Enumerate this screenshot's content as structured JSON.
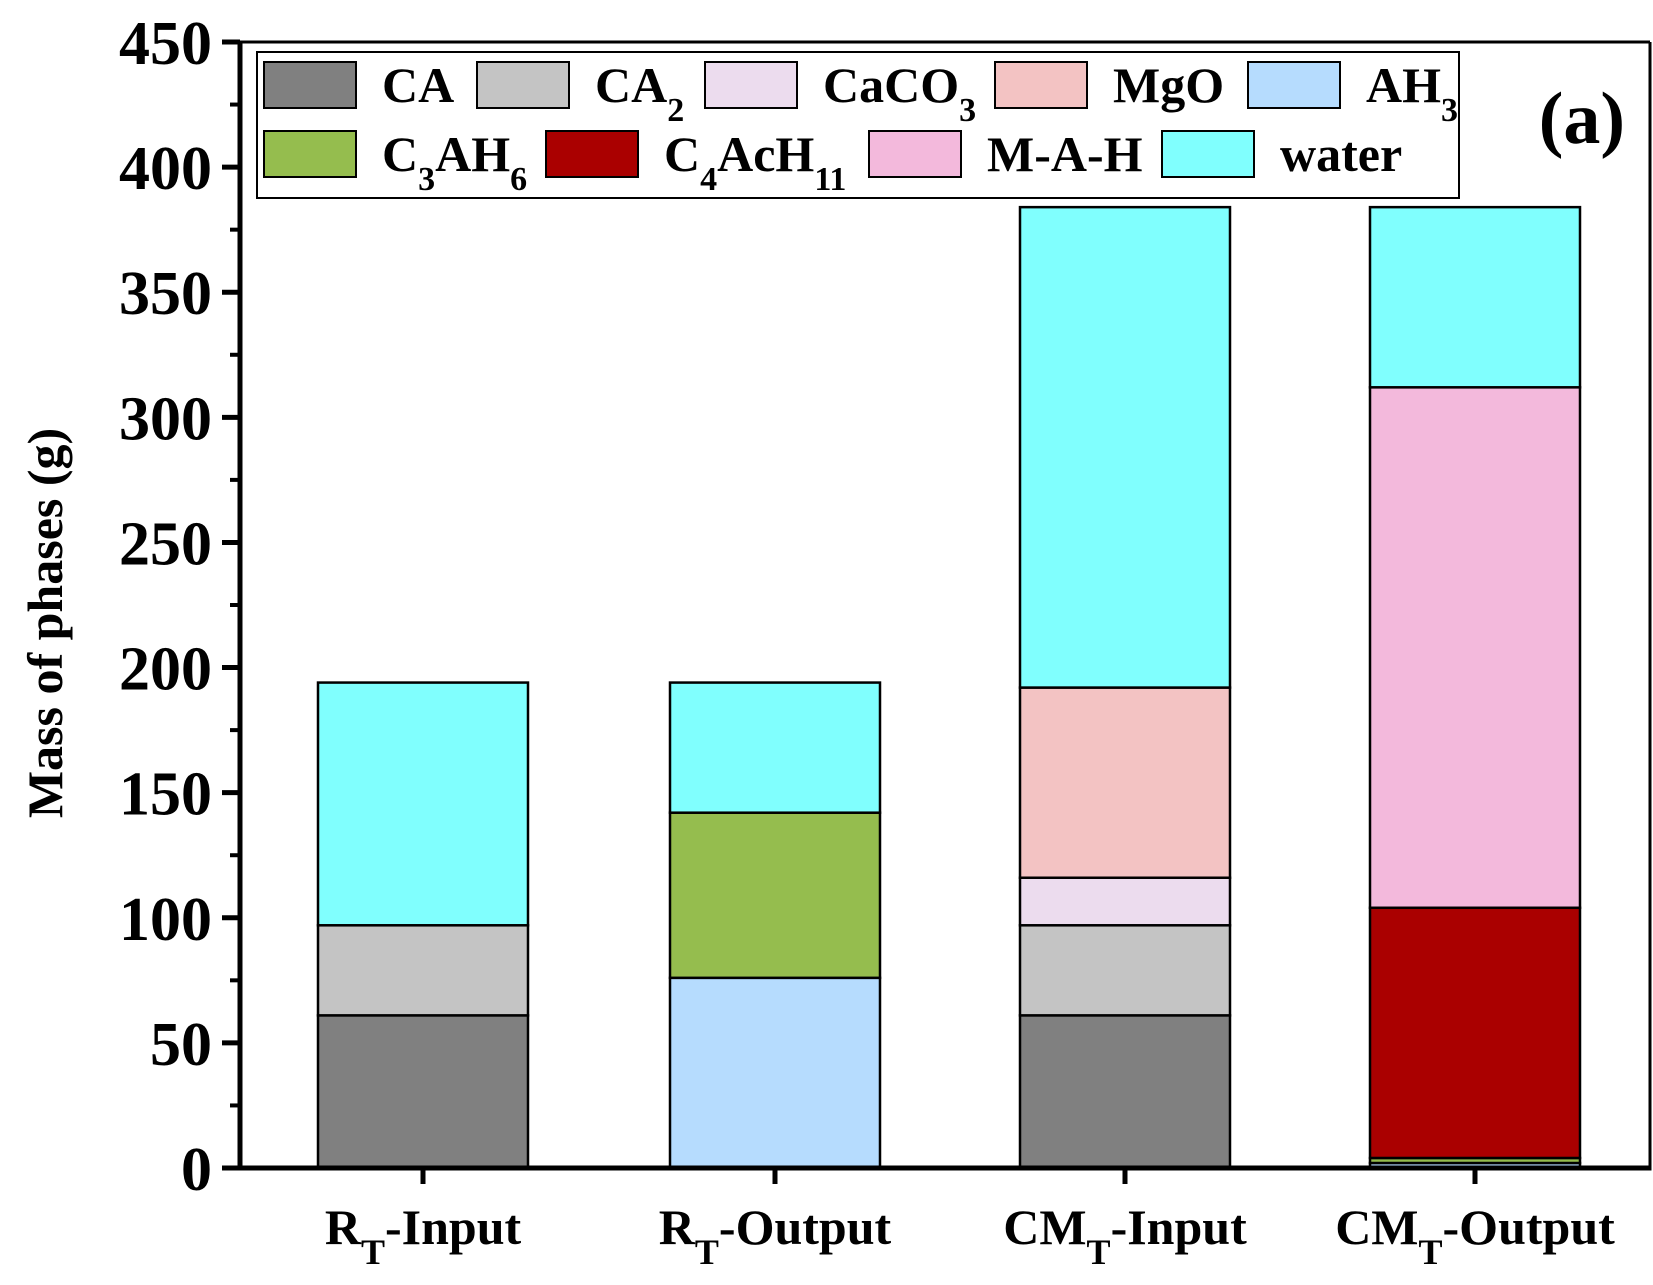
{
  "chart_data": {
    "type": "bar",
    "stacked": true,
    "panel_label": "(a)",
    "ylabel": "Mass of phases (g)",
    "xlabel": "",
    "ylim": [
      0,
      450
    ],
    "yticks": [
      "0",
      "50",
      "100",
      "150",
      "200",
      "250",
      "300",
      "350",
      "400",
      "450"
    ],
    "categories": [
      {
        "main": "R",
        "sub": "T",
        "rest": "-Input"
      },
      {
        "main": "R",
        "sub": "T",
        "rest": "-Output"
      },
      {
        "main": "CM",
        "sub": "T",
        "rest": "-Input"
      },
      {
        "main": "CM",
        "sub": "T",
        "rest": "-Output"
      }
    ],
    "series": [
      {
        "name": "CA",
        "label": {
          "parts": [
            {
              "t": "CA"
            }
          ]
        },
        "color": "#808080",
        "values": [
          61,
          0,
          61,
          0
        ]
      },
      {
        "name": "CA2",
        "label": {
          "parts": [
            {
              "t": "CA"
            },
            {
              "t": "2",
              "sub": true
            }
          ]
        },
        "color": "#c4c4c4",
        "values": [
          36,
          0,
          36,
          0
        ]
      },
      {
        "name": "CaCO3",
        "label": {
          "parts": [
            {
              "t": "CaCO"
            },
            {
              "t": "3",
              "sub": true
            }
          ]
        },
        "color": "#ecdcee",
        "values": [
          0,
          0,
          19,
          0
        ]
      },
      {
        "name": "MgO",
        "label": {
          "parts": [
            {
              "t": "MgO"
            }
          ]
        },
        "color": "#f3c3c3",
        "values": [
          0,
          0,
          76,
          0
        ]
      },
      {
        "name": "AH3",
        "label": {
          "parts": [
            {
              "t": "AH"
            },
            {
              "t": "3",
              "sub": true
            }
          ]
        },
        "color": "#b6dcfe",
        "values": [
          0,
          76,
          0,
          2
        ]
      },
      {
        "name": "C3AH6",
        "label": {
          "parts": [
            {
              "t": "C"
            },
            {
              "t": "3",
              "sub": true
            },
            {
              "t": "AH"
            },
            {
              "t": "6",
              "sub": true
            }
          ]
        },
        "color": "#95bd4e",
        "values": [
          0,
          66,
          0,
          2
        ]
      },
      {
        "name": "C4AcH11",
        "label": {
          "parts": [
            {
              "t": "C"
            },
            {
              "t": "4",
              "sub": true
            },
            {
              "t": "AcH"
            },
            {
              "t": "11",
              "sub": true
            }
          ]
        },
        "color": "#aa0000",
        "values": [
          0,
          0,
          0,
          100
        ]
      },
      {
        "name": "M-A-H",
        "label": {
          "parts": [
            {
              "t": "M-A-H"
            }
          ]
        },
        "color": "#f3b9dc",
        "values": [
          0,
          0,
          0,
          208
        ]
      },
      {
        "name": "water",
        "label": {
          "parts": [
            {
              "t": "water"
            }
          ]
        },
        "color": "#80fffe",
        "values": [
          97,
          52,
          192,
          72
        ]
      }
    ],
    "grid": false,
    "legend_position": "top"
  }
}
